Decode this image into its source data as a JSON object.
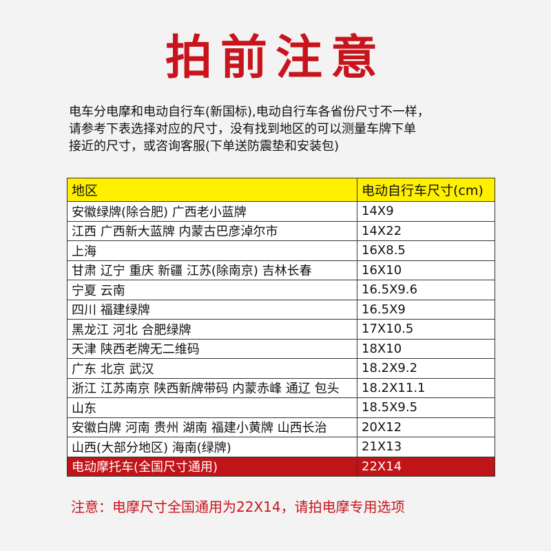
{
  "header": {
    "title": "拍前注意"
  },
  "intro": [
    "电车分电摩和电动自行车(新国标),电动自行车各省份尺寸不一样，",
    "请参考下表选择对应的尺寸，没有找到地区的可以测量车牌下单",
    "接近的尺寸，或咨询客服(下单送防震垫和安装包)"
  ],
  "table": {
    "columns": [
      "地区",
      "电动自行车尺寸(cm)"
    ],
    "rows": [
      [
        "安徽绿牌(除合肥)   广西老小蓝牌",
        "14X9"
      ],
      [
        "江西 广西新大蓝牌  内蒙古巴彦淖尔市",
        "14X22"
      ],
      [
        "上海",
        "16X8.5"
      ],
      [
        "甘肃 辽宁 重庆 新疆  江苏(除南京) 吉林长春",
        "16X10"
      ],
      [
        "宁夏 云南",
        "16.5X9.6"
      ],
      [
        "四川 福建绿牌",
        "16.5X9"
      ],
      [
        "黑龙江 河北 合肥绿牌",
        "17X10.5"
      ],
      [
        "天津 陕西老牌无二维码",
        "18X10"
      ],
      [
        "广东 北京 武汉",
        "18.2X9.2"
      ],
      [
        "浙江 江苏南京 陕西新牌带码 内蒙赤峰 通辽 包头",
        "18.2X11.1"
      ],
      [
        "山东",
        "18.5X9.5"
      ],
      [
        "安徽白牌 河南 贵州 湖南 福建小黄牌 山西长治",
        "20X12"
      ],
      [
        "山西(大部分地区) 海南(绿牌)",
        "21X13"
      ],
      [
        "电动摩托车(全国尺寸通用)",
        "22X14"
      ]
    ]
  },
  "note": "注意：电摩尺寸全国通用为22X14，请拍电摩专用选项"
}
